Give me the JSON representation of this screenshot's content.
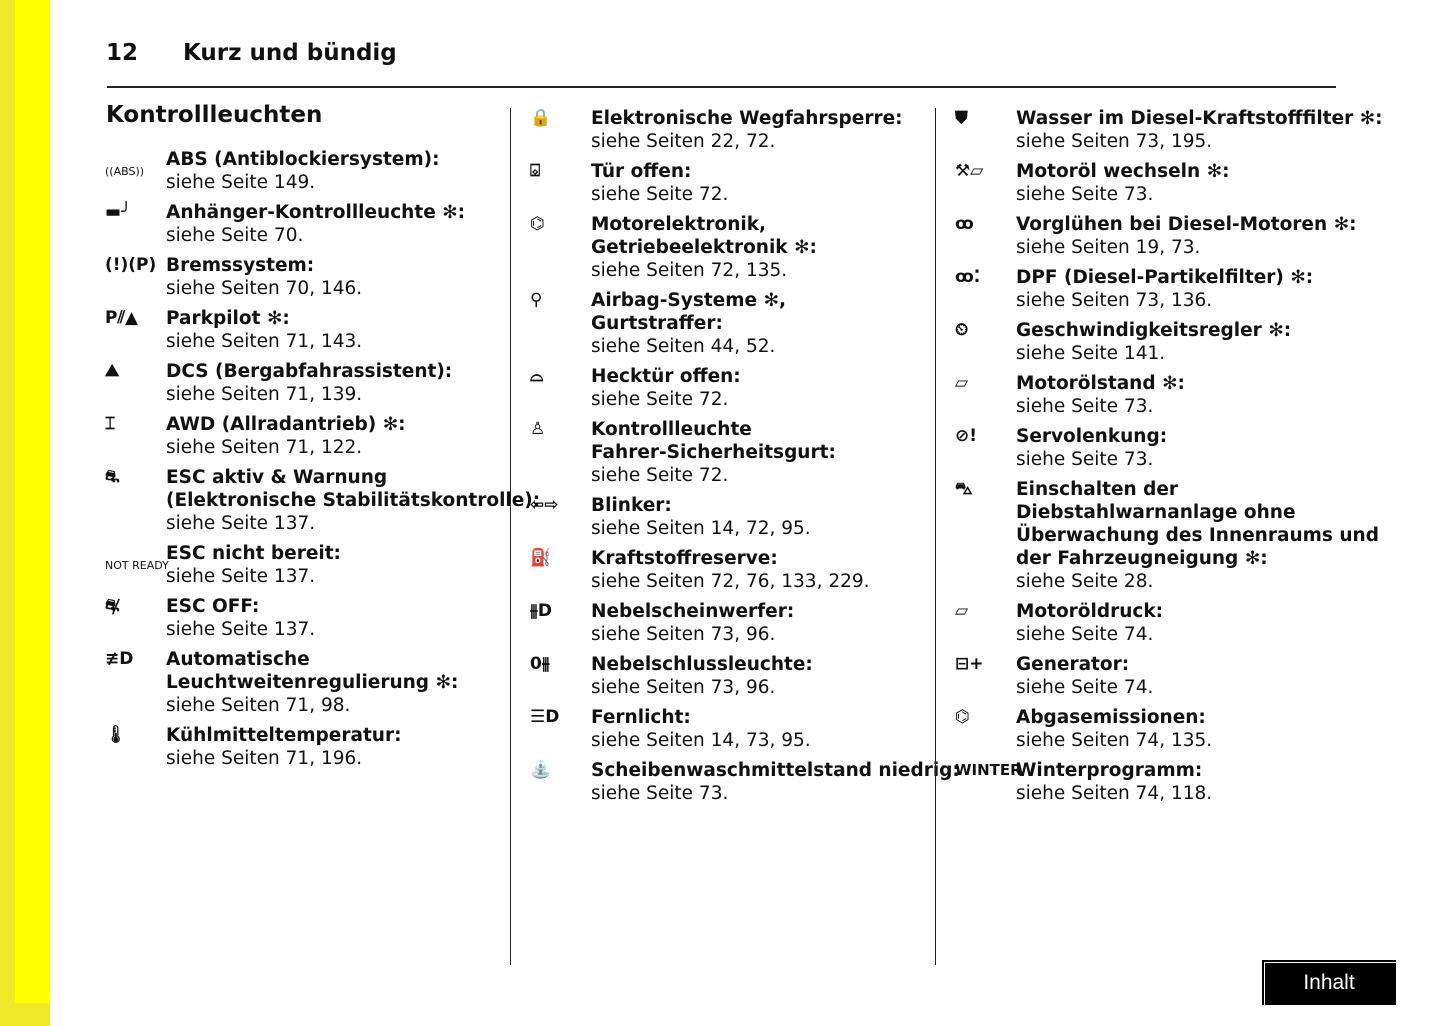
{
  "header": {
    "page_number": "12",
    "chapter": "Kurz und bündig"
  },
  "section_heading": "Kontrollleuchten",
  "columns": [
    [
      {
        "icon": "abs-icon",
        "glyph": "((ABS))",
        "title": [
          "ABS (Antiblockiersystem):"
        ],
        "ref": "siehe Seite 149."
      },
      {
        "icon": "trailer-icon",
        "glyph": "▬╯",
        "title": [
          "Anhänger-Kontrollleuchte ✻:"
        ],
        "ref": "siehe Seite 70."
      },
      {
        "icon": "brake-icon",
        "glyph": "(!)(P)",
        "title": [
          "Bremssystem:"
        ],
        "ref": "siehe Seiten 70, 146."
      },
      {
        "icon": "parking-pilot-icon",
        "glyph": "P⫽▲",
        "title": [
          "Parkpilot ✻:"
        ],
        "ref": "siehe Seiten 71, 143."
      },
      {
        "icon": "descent-control-icon",
        "glyph": "⛰",
        "title": [
          "DCS (Bergabfahrassistent):"
        ],
        "ref": "siehe Seiten 71, 139."
      },
      {
        "icon": "awd-icon",
        "glyph": "⌶",
        "title": [
          "AWD (Allradantrieb) ✻:"
        ],
        "ref": "siehe Seiten 71, 122."
      },
      {
        "icon": "esc-icon",
        "glyph": "⛐",
        "title": [
          "ESC aktiv & Warnung",
          "(Elektronische Stabilitätskontrolle):"
        ],
        "ref": "siehe Seite 137."
      },
      {
        "icon": "esc-not-ready-icon",
        "glyph": "NOT READY",
        "title": [
          "ESC nicht bereit:"
        ],
        "ref": "siehe Seite 137."
      },
      {
        "icon": "esc-off-icon",
        "glyph": "⛐̸",
        "title": [
          "ESC OFF:"
        ],
        "ref": "siehe Seite 137."
      },
      {
        "icon": "headlight-leveling-icon",
        "glyph": "≢D",
        "title": [
          "Automatische",
          "Leuchtweitenregulierung ✻:"
        ],
        "ref": "siehe Seiten 71, 98."
      },
      {
        "icon": "coolant-temperature-icon",
        "glyph": "🌡",
        "title": [
          "Kühlmitteltemperatur:"
        ],
        "ref": "siehe Seiten 71, 196."
      }
    ],
    [
      {
        "icon": "immobilizer-icon",
        "glyph": "🔒",
        "title": [
          "Elektronische Wegfahrsperre:"
        ],
        "ref": "siehe Seiten 22, 72."
      },
      {
        "icon": "door-open-icon",
        "glyph": "⌺",
        "title": [
          "Tür offen:"
        ],
        "ref": "siehe Seite 72."
      },
      {
        "icon": "engine-electronics-icon",
        "glyph": "⌬",
        "title": [
          "Motorelektronik,",
          "Getriebeelektronik ✻:"
        ],
        "ref": "siehe Seiten 72, 135."
      },
      {
        "icon": "airbag-icon",
        "glyph": "⚲",
        "title": [
          "Airbag-Systeme ✻,",
          "Gurtstraffer:"
        ],
        "ref": "siehe Seiten 44, 52."
      },
      {
        "icon": "tailgate-open-icon",
        "glyph": "⌓",
        "title": [
          "Hecktür offen:"
        ],
        "ref": "siehe Seite 72."
      },
      {
        "icon": "seatbelt-icon",
        "glyph": "♙",
        "title": [
          "Kontrollleuchte",
          "Fahrer-Sicherheitsgurt:"
        ],
        "ref": "siehe Seite 72."
      },
      {
        "icon": "turn-signal-icon",
        "glyph": "⇦⇨",
        "title": [
          "Blinker:"
        ],
        "ref": "siehe Seiten 14, 72, 95."
      },
      {
        "icon": "fuel-icon",
        "glyph": "⛽",
        "title": [
          "Kraftstoffreserve:"
        ],
        "ref": "siehe Seiten 72, 76, 133, 229."
      },
      {
        "icon": "fog-light-icon",
        "glyph": "⫵D",
        "title": [
          "Nebelscheinwerfer:"
        ],
        "ref": "siehe Seiten 73, 96."
      },
      {
        "icon": "rear-fog-light-icon",
        "glyph": "0⫵",
        "title": [
          "Nebelschlussleuchte:"
        ],
        "ref": "siehe Seiten 73, 96."
      },
      {
        "icon": "high-beam-icon",
        "glyph": "☰D",
        "title": [
          "Fernlicht:"
        ],
        "ref": "siehe Seiten 14, 73, 95."
      },
      {
        "icon": "washer-fluid-icon",
        "glyph": "⛲",
        "title": [
          "Scheibenwaschmittelstand niedrig:"
        ],
        "ref": "siehe Seite 73."
      }
    ],
    [
      {
        "icon": "water-in-fuel-icon",
        "glyph": "⛊",
        "title": [
          "Wasser im Diesel-Kraftstofffilter ✻:"
        ],
        "ref": "siehe Seiten 73, 195."
      },
      {
        "icon": "oil-change-icon",
        "glyph": "⚒⏥",
        "title": [
          "Motoröl wechseln ✻:"
        ],
        "ref": "siehe Seite 73."
      },
      {
        "icon": "glow-plug-icon",
        "glyph": "ꝏ",
        "title": [
          "Vorglühen bei Diesel-Motoren ✻:"
        ],
        "ref": "siehe Seiten 19, 73."
      },
      {
        "icon": "dpf-icon",
        "glyph": "ꝏ⁚",
        "title": [
          "DPF (Diesel-Partikelfilter) ✻:"
        ],
        "ref": "siehe Seiten 73, 136."
      },
      {
        "icon": "cruise-control-icon",
        "glyph": "⏲",
        "title": [
          "Geschwindigkeitsregler ✻:"
        ],
        "ref": "siehe Seite 141."
      },
      {
        "icon": "oil-level-icon",
        "glyph": "⏥",
        "title": [
          "Motorölstand ✻:"
        ],
        "ref": "siehe Seite 73."
      },
      {
        "icon": "power-steering-icon",
        "glyph": "⊘!",
        "title": [
          "Servolenkung:"
        ],
        "ref": "siehe Seite 73."
      },
      {
        "icon": "alarm-disable-icon",
        "glyph": "⛍",
        "title": [
          "Einschalten der",
          "Diebstahlwarnanlage ohne",
          "Überwachung des Innenraums und",
          "der Fahrzeugneigung ✻:"
        ],
        "ref": "siehe Seite 28."
      },
      {
        "icon": "oil-pressure-icon",
        "glyph": "⏥",
        "title": [
          "Motoröldruck:"
        ],
        "ref": "siehe Seite 74."
      },
      {
        "icon": "battery-icon",
        "glyph": "⊟+",
        "title": [
          "Generator:"
        ],
        "ref": "siehe Seite 74."
      },
      {
        "icon": "emissions-icon",
        "glyph": "⌬",
        "title": [
          "Abgasemissionen:"
        ],
        "ref": "siehe Seiten 74, 135."
      },
      {
        "icon": "winter-icon",
        "glyph": "WINTER",
        "title": [
          "Winterprogramm:"
        ],
        "ref": "siehe Seiten 74, 118."
      }
    ]
  ],
  "nav": {
    "inhalt_label": "Inhalt"
  },
  "colors": {
    "strip_outer": "#f1e82a",
    "strip_inner": "#ffff00",
    "button_bg": "#000000"
  }
}
